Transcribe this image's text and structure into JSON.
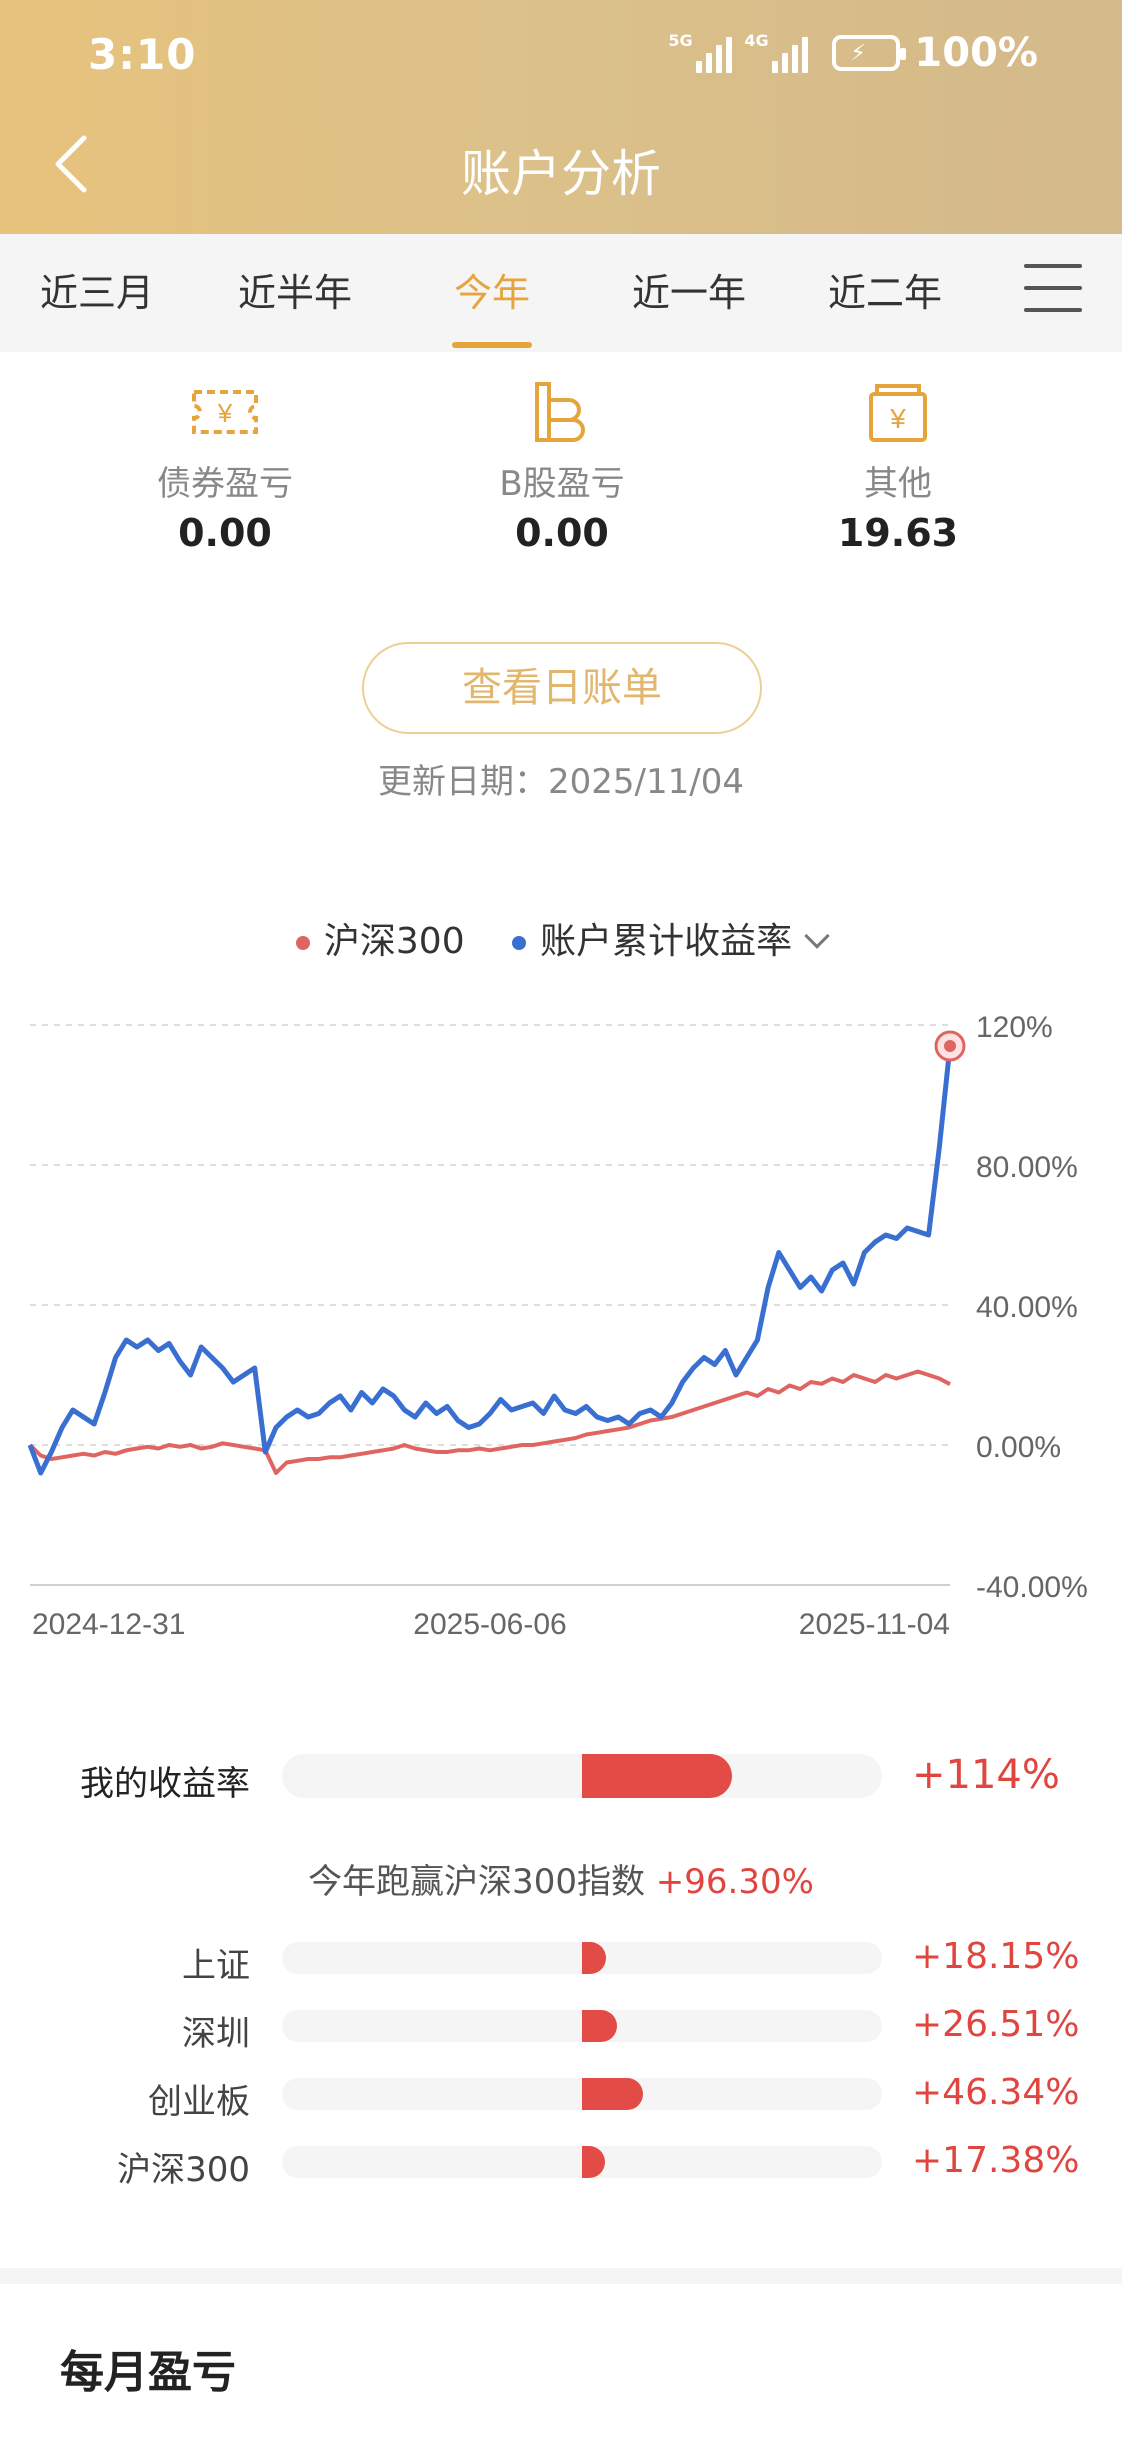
{
  "status_bar": {
    "time": "3:10",
    "network_1": "5G",
    "network_2": "4G",
    "battery": "100%"
  },
  "header": {
    "title": "账户分析"
  },
  "tabs": [
    {
      "label": "近三月",
      "active": false
    },
    {
      "label": "近半年",
      "active": false
    },
    {
      "label": "今年",
      "active": true
    },
    {
      "label": "近一年",
      "active": false
    },
    {
      "label": "近二年",
      "active": false
    }
  ],
  "stats": [
    {
      "label": "债券盈亏",
      "value": "0.00",
      "icon": "bond-ticket-icon"
    },
    {
      "label": "B股盈亏",
      "value": "0.00",
      "icon": "b-share-icon"
    },
    {
      "label": "其他",
      "value": "19.63",
      "icon": "money-bag-icon"
    }
  ],
  "daily_bill_button": "查看日账单",
  "update_date": "更新日期：2025/11/04",
  "legend": {
    "benchmark": "沪深300",
    "account": "账户累计收益率"
  },
  "colors": {
    "header_gold": "#e7c27c",
    "accent": "#e6a53c",
    "benchmark_red": "#e06461",
    "account_blue": "#3a6fd2",
    "gain_red": "#e0453f"
  },
  "chart_data": {
    "type": "line",
    "x_labels": [
      "2024-12-31",
      "2025-06-06",
      "2025-11-04"
    ],
    "y_ticks": [
      "120%",
      "80.00%",
      "40.00%",
      "0.00%",
      "-40.00%"
    ],
    "ylim": [
      -40,
      120
    ],
    "grid": true,
    "legend_position": "top-center",
    "series": [
      {
        "name": "沪深300",
        "color": "#e06461",
        "values": [
          0,
          -3,
          -4,
          -3.5,
          -3,
          -2.5,
          -3,
          -2,
          -2.5,
          -1.5,
          -1,
          -0.5,
          -1,
          0,
          -0.5,
          0,
          -1,
          -0.5,
          0.5,
          0,
          -0.5,
          -1,
          -1.5,
          -8,
          -5,
          -4.5,
          -4,
          -4,
          -3.5,
          -3.5,
          -3,
          -2.5,
          -2,
          -1.5,
          -1,
          0,
          -1,
          -1.5,
          -2,
          -2,
          -1.5,
          -1.5,
          -1,
          -1.5,
          -1,
          -0.5,
          0,
          0,
          0.5,
          1,
          1.5,
          2,
          3,
          3.5,
          4,
          4.5,
          5,
          6,
          7,
          7.5,
          8,
          9,
          10,
          11,
          12,
          13,
          14,
          15,
          14,
          16,
          15,
          17,
          16,
          18,
          17.5,
          19,
          18,
          20,
          19,
          18,
          20,
          19,
          20,
          21,
          20,
          19,
          17.38
        ]
      },
      {
        "name": "账户累计收益率",
        "color": "#3a6fd2",
        "values": [
          0,
          -8,
          -2,
          5,
          10,
          8,
          6,
          15,
          25,
          30,
          28,
          30,
          27,
          29,
          24,
          20,
          28,
          25,
          22,
          18,
          20,
          22,
          -2,
          5,
          8,
          10,
          8,
          9,
          12,
          14,
          10,
          15,
          12,
          16,
          14,
          10,
          8,
          12,
          9,
          11,
          7,
          5,
          6,
          9,
          13,
          10,
          11,
          12,
          9,
          14,
          10,
          9,
          11,
          8,
          7,
          8,
          6,
          9,
          10,
          8,
          12,
          18,
          22,
          25,
          23,
          27,
          20,
          25,
          30,
          45,
          55,
          50,
          45,
          48,
          44,
          50,
          52,
          46,
          55,
          58,
          60,
          59,
          62,
          61,
          60,
          85,
          114
        ]
      }
    ],
    "end_marker": {
      "series": "账户累计收益率",
      "value": 114
    }
  },
  "comparison": {
    "my_return": {
      "label": "我的收益率",
      "value": "+114%",
      "ratio": 114
    },
    "beat_text": "今年跑赢沪深300指数",
    "beat_value": "+96.30%",
    "indices": [
      {
        "label": "上证",
        "value": "+18.15%",
        "ratio": 18.15
      },
      {
        "label": "深圳",
        "value": "+26.51%",
        "ratio": 26.51
      },
      {
        "label": "创业板",
        "value": "+46.34%",
        "ratio": 46.34
      },
      {
        "label": "沪深300",
        "value": "+17.38%",
        "ratio": 17.38
      }
    ]
  },
  "monthly_section": {
    "title": "每月盈亏"
  }
}
